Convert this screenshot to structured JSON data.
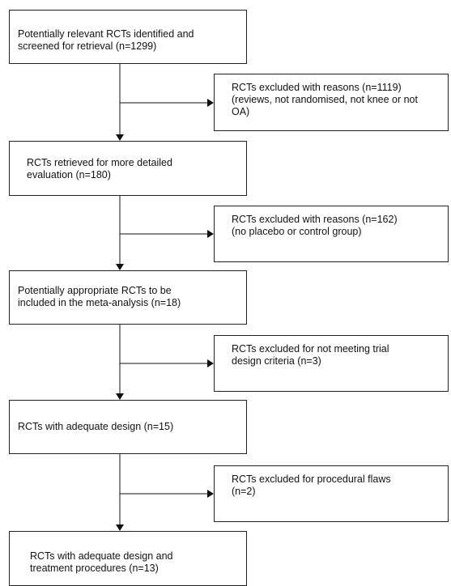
{
  "main_steps": [
    {
      "lines": [
        "Potentially relevant RCTs identified and",
        "screened for retrieval (n=1299)"
      ]
    },
    {
      "lines": [
        "RCTs retrieved for more detailed",
        "evaluation (n=180)"
      ]
    },
    {
      "lines": [
        "Potentially appropriate RCTs to be",
        "included in the meta-analysis (n=18)"
      ]
    },
    {
      "lines": [
        "RCTs with adequate design (n=15)"
      ]
    },
    {
      "lines": [
        "RCTs with adequate design and",
        "treatment procedures  (n=13)"
      ]
    }
  ],
  "exclusions": [
    {
      "lines": [
        "RCTs excluded with reasons (n=1119)",
        "(reviews, not randomised, not knee or not",
        "OA)"
      ]
    },
    {
      "lines": [
        "RCTs excluded with reasons (n=162)",
        "(no placebo or control group)"
      ]
    },
    {
      "lines": [
        "RCTs excluded for not meeting trial",
        "design criteria (n=3)"
      ]
    },
    {
      "lines": [
        "RCTs excluded for procedural flaws",
        "(n=2)"
      ]
    }
  ]
}
